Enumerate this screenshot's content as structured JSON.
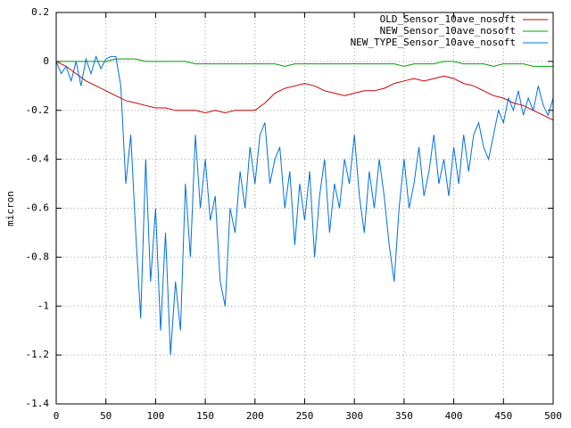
{
  "chart_data": {
    "type": "line",
    "y_label": "micron",
    "xlim": [
      0,
      500
    ],
    "ylim": [
      -1.4,
      0.2
    ],
    "xticks": [
      0,
      50,
      100,
      150,
      200,
      250,
      300,
      350,
      400,
      450,
      500
    ],
    "yticks": [
      0.2,
      0,
      -0.2,
      -0.4,
      -0.6,
      -0.8,
      -1,
      -1.2,
      -1.4
    ],
    "grid": true,
    "legend": "top-right",
    "series": [
      {
        "name": "OLD_Sensor_10ave_nosoft",
        "color": "#cc0000",
        "x": [
          0,
          10,
          20,
          30,
          40,
          50,
          60,
          70,
          80,
          90,
          100,
          110,
          120,
          130,
          140,
          150,
          160,
          170,
          180,
          190,
          200,
          210,
          220,
          230,
          240,
          250,
          260,
          270,
          280,
          290,
          300,
          310,
          320,
          330,
          340,
          350,
          360,
          370,
          380,
          390,
          400,
          410,
          420,
          430,
          440,
          450,
          460,
          470,
          480,
          490,
          500
        ],
        "values": [
          0,
          -0.02,
          -0.05,
          -0.08,
          -0.1,
          -0.12,
          -0.14,
          -0.16,
          -0.17,
          -0.18,
          -0.19,
          -0.19,
          -0.2,
          -0.2,
          -0.2,
          -0.21,
          -0.2,
          -0.21,
          -0.2,
          -0.2,
          -0.2,
          -0.17,
          -0.13,
          -0.11,
          -0.1,
          -0.09,
          -0.1,
          -0.12,
          -0.13,
          -0.14,
          -0.13,
          -0.12,
          -0.12,
          -0.11,
          -0.09,
          -0.08,
          -0.07,
          -0.08,
          -0.07,
          -0.06,
          -0.07,
          -0.09,
          -0.1,
          -0.12,
          -0.14,
          -0.15,
          -0.17,
          -0.18,
          -0.2,
          -0.22,
          -0.24
        ]
      },
      {
        "name": "NEW_Sensor_10ave_nosoft",
        "color": "#00a000",
        "x": [
          0,
          10,
          20,
          30,
          40,
          50,
          60,
          70,
          80,
          90,
          100,
          110,
          120,
          130,
          140,
          150,
          160,
          170,
          180,
          190,
          200,
          210,
          220,
          230,
          240,
          250,
          260,
          270,
          280,
          290,
          300,
          310,
          320,
          330,
          340,
          350,
          360,
          370,
          380,
          390,
          400,
          410,
          420,
          430,
          440,
          450,
          460,
          470,
          480,
          490,
          500
        ],
        "values": [
          0,
          0,
          0,
          0,
          0,
          0,
          0.01,
          0.01,
          0.01,
          0,
          0,
          0,
          0,
          0,
          -0.01,
          -0.01,
          -0.01,
          -0.01,
          -0.01,
          -0.01,
          -0.01,
          -0.01,
          -0.01,
          -0.02,
          -0.01,
          -0.01,
          -0.01,
          -0.01,
          -0.01,
          -0.01,
          -0.01,
          -0.01,
          -0.01,
          -0.01,
          -0.01,
          -0.02,
          -0.01,
          -0.01,
          -0.01,
          0,
          0,
          -0.01,
          -0.01,
          -0.01,
          -0.02,
          -0.01,
          -0.01,
          -0.01,
          -0.02,
          -0.02,
          -0.02
        ]
      },
      {
        "name": "NEW_TYPE_Sensor_10ave_nosoft",
        "color": "#0070e0",
        "x": [
          0,
          5,
          10,
          15,
          20,
          25,
          30,
          35,
          40,
          45,
          50,
          55,
          60,
          65,
          70,
          75,
          80,
          85,
          90,
          95,
          100,
          105,
          110,
          115,
          120,
          125,
          130,
          135,
          140,
          145,
          150,
          155,
          160,
          165,
          170,
          175,
          180,
          185,
          190,
          195,
          200,
          205,
          210,
          215,
          220,
          225,
          230,
          235,
          240,
          245,
          250,
          255,
          260,
          265,
          270,
          275,
          280,
          285,
          290,
          295,
          300,
          305,
          310,
          315,
          320,
          325,
          330,
          335,
          340,
          345,
          350,
          355,
          360,
          365,
          370,
          375,
          380,
          385,
          390,
          395,
          400,
          405,
          410,
          415,
          420,
          425,
          430,
          435,
          440,
          445,
          450,
          455,
          460,
          465,
          470,
          475,
          480,
          485,
          490,
          495,
          500
        ],
        "values": [
          0,
          -0.05,
          -0.02,
          -0.08,
          0,
          -0.1,
          0.01,
          -0.05,
          0.02,
          -0.03,
          0.01,
          0.02,
          0.02,
          -0.1,
          -0.5,
          -0.3,
          -0.7,
          -1.05,
          -0.4,
          -0.9,
          -0.6,
          -1.1,
          -0.7,
          -1.2,
          -0.9,
          -1.1,
          -0.5,
          -0.8,
          -0.3,
          -0.6,
          -0.4,
          -0.65,
          -0.55,
          -0.9,
          -1,
          -0.6,
          -0.7,
          -0.45,
          -0.6,
          -0.35,
          -0.5,
          -0.3,
          -0.25,
          -0.5,
          -0.4,
          -0.35,
          -0.6,
          -0.45,
          -0.75,
          -0.5,
          -0.65,
          -0.45,
          -0.8,
          -0.55,
          -0.4,
          -0.7,
          -0.5,
          -0.6,
          -0.4,
          -0.5,
          -0.3,
          -0.55,
          -0.7,
          -0.45,
          -0.6,
          -0.4,
          -0.55,
          -0.75,
          -0.9,
          -0.6,
          -0.4,
          -0.6,
          -0.5,
          -0.35,
          -0.55,
          -0.45,
          -0.3,
          -0.5,
          -0.4,
          -0.55,
          -0.35,
          -0.5,
          -0.3,
          -0.45,
          -0.3,
          -0.25,
          -0.35,
          -0.4,
          -0.3,
          -0.2,
          -0.25,
          -0.15,
          -0.2,
          -0.12,
          -0.22,
          -0.15,
          -0.2,
          -0.1,
          -0.18,
          -0.22,
          -0.15
        ]
      }
    ]
  }
}
